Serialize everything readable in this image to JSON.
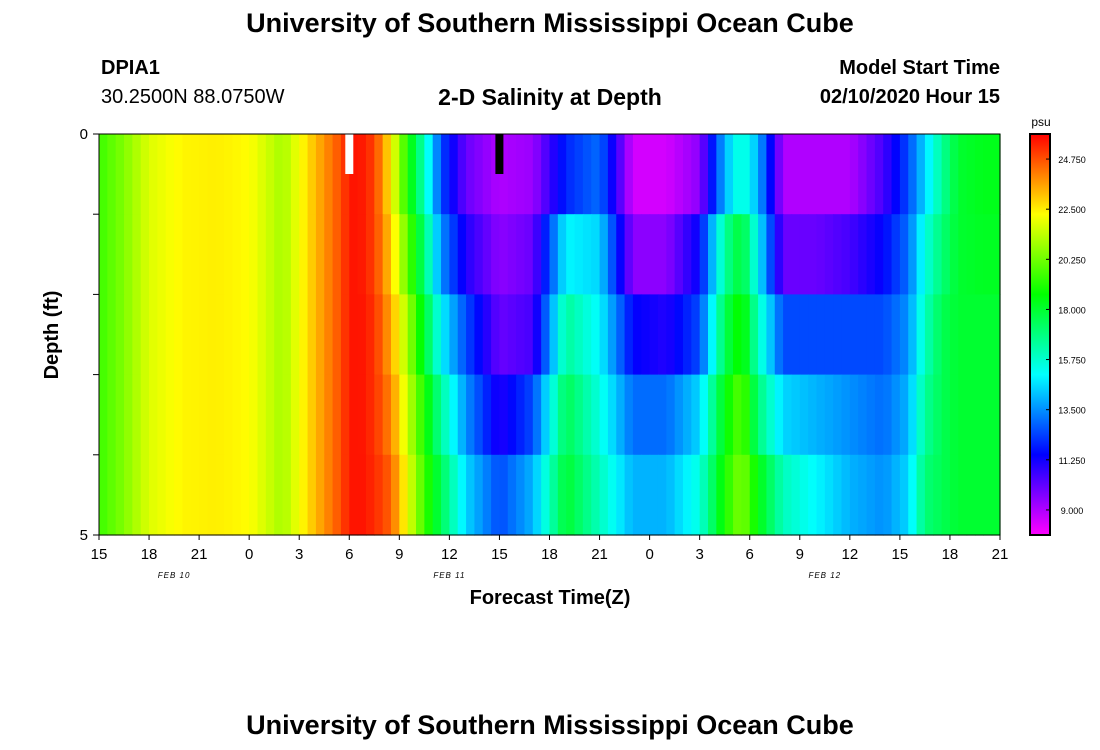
{
  "title_top": "University of Southern Mississippi Ocean Cube",
  "title_bottom": "University of Southern Mississippi Ocean Cube",
  "station": {
    "id": "DPIA1",
    "coords": "30.2500N 88.0750W"
  },
  "model": {
    "label": "Model Start Time",
    "value": "02/10/2020 Hour 15"
  },
  "chart_data": {
    "type": "heatmap",
    "title": "2-D Salinity at Depth",
    "xlabel": "Forecast Time(Z)",
    "ylabel": "Depth (ft)",
    "ylim": [
      0,
      5
    ],
    "y_tick_labels": [
      "0",
      "5"
    ],
    "x_tick_labels": [
      "15",
      "18",
      "21",
      "0",
      "3",
      "6",
      "9",
      "12",
      "15",
      "18",
      "21",
      "0",
      "3",
      "6",
      "9",
      "12",
      "15",
      "18",
      "21"
    ],
    "date_labels": [
      {
        "text": "FEB 10",
        "at_tick": 1.5
      },
      {
        "text": "FEB 11",
        "at_tick": 7
      },
      {
        "text": "FEB 12",
        "at_tick": 14.5
      }
    ],
    "x_hours_range": [
      0,
      54
    ],
    "depth_rows": 5,
    "colorbar": {
      "unit": "psu",
      "min": 7.875,
      "max": 25.875,
      "tick_labels": [
        "24.750",
        "22.500",
        "20.250",
        "18.000",
        "15.750",
        "13.500",
        "11.250",
        "9.000"
      ],
      "tick_values": [
        24.75,
        22.5,
        20.25,
        18.0,
        15.75,
        13.5,
        11.25,
        9.0
      ]
    },
    "markers": [
      {
        "name": "current-time",
        "hour": 15,
        "color": "#ffffff"
      },
      {
        "name": "selected-time",
        "hour": 24,
        "color": "#000000"
      }
    ],
    "salinity_profile": {
      "hours": [
        0,
        1.5,
        3,
        5,
        7,
        9,
        11,
        13,
        14.5,
        15,
        15.5,
        16.5,
        17.5,
        18.5,
        19.5,
        20.5,
        22,
        24,
        26,
        28,
        30,
        32,
        34,
        36,
        37.5,
        38.5,
        39.5,
        41,
        43,
        45,
        47,
        48.5,
        49.5,
        50.5,
        51.5,
        53,
        54
      ],
      "row_0": [
        19.5,
        20.5,
        21.8,
        22.4,
        22.5,
        22.3,
        21.0,
        23.3,
        24.8,
        25.5,
        25.7,
        25.0,
        22.5,
        19.0,
        16.0,
        12.5,
        10.0,
        9.0,
        9.3,
        12.0,
        13.0,
        8.5,
        8.5,
        9.5,
        14.0,
        15.8,
        14.0,
        9.0,
        9.0,
        9.0,
        10.5,
        12.5,
        14.5,
        16.5,
        18.0,
        18.3,
        18.3
      ],
      "row_1": [
        19.5,
        20.5,
        21.8,
        22.4,
        22.5,
        22.3,
        21.0,
        23.3,
        24.8,
        25.5,
        25.7,
        25.0,
        23.0,
        20.0,
        17.0,
        13.5,
        11.0,
        9.5,
        10.0,
        15.0,
        14.5,
        9.5,
        9.5,
        11.5,
        16.5,
        18.0,
        15.0,
        10.0,
        10.0,
        10.5,
        11.5,
        13.0,
        15.5,
        17.0,
        18.0,
        18.2,
        18.2
      ],
      "row_2": [
        19.5,
        20.5,
        21.8,
        22.4,
        22.5,
        22.3,
        21.0,
        23.3,
        24.8,
        25.5,
        25.7,
        25.2,
        23.5,
        21.0,
        18.0,
        15.0,
        12.5,
        10.0,
        10.5,
        16.5,
        15.0,
        11.5,
        11.0,
        12.5,
        17.5,
        19.0,
        16.0,
        12.5,
        12.5,
        12.5,
        12.5,
        13.5,
        16.0,
        17.5,
        18.0,
        18.0,
        18.0
      ],
      "row_3": [
        19.5,
        20.5,
        21.8,
        22.4,
        22.5,
        22.3,
        21.0,
        23.3,
        24.8,
        25.5,
        25.7,
        25.2,
        24.0,
        21.5,
        19.0,
        16.5,
        13.5,
        11.0,
        12.5,
        17.5,
        15.5,
        13.0,
        13.0,
        14.5,
        18.5,
        20.0,
        17.0,
        14.5,
        14.0,
        13.5,
        13.0,
        14.0,
        16.5,
        17.5,
        18.0,
        18.0,
        18.0
      ],
      "row_4": [
        19.5,
        20.5,
        21.8,
        22.4,
        22.5,
        22.3,
        21.0,
        23.3,
        24.8,
        25.5,
        25.7,
        25.3,
        24.5,
        22.0,
        19.5,
        17.5,
        14.5,
        12.5,
        14.0,
        18.0,
        16.0,
        14.0,
        14.0,
        15.5,
        19.0,
        20.5,
        18.5,
        16.0,
        15.0,
        14.0,
        13.5,
        14.5,
        17.0,
        17.5,
        18.0,
        18.0,
        18.0
      ]
    }
  }
}
